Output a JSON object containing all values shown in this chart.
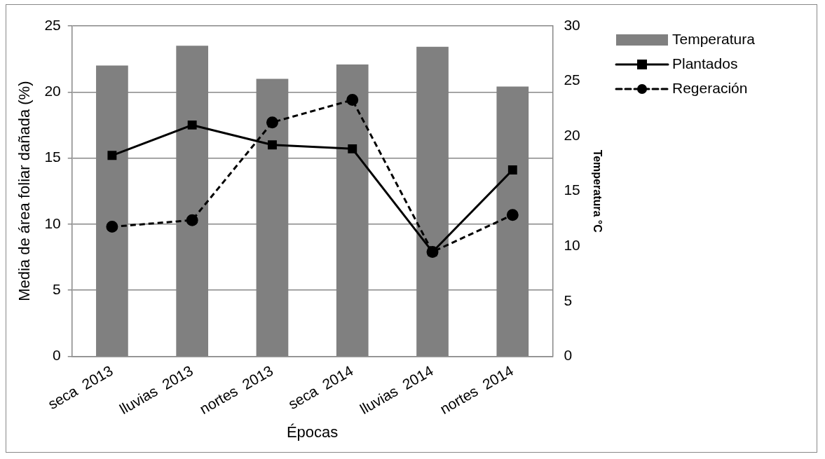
{
  "chart_data": {
    "type": "bar",
    "xlabel": "Épocas",
    "ylabel": "Media de área foliar dañada (%)",
    "y2label": "Temperatura °C",
    "categories": [
      "seca  2013",
      "lluvias  2013",
      "nortes  2013",
      "seca  2014",
      "lluvias  2014",
      "nortes  2014"
    ],
    "series": [
      {
        "name": "Temperatura",
        "axis": "y2",
        "color": "#808080",
        "values": [
          26.4,
          28.2,
          25.2,
          26.5,
          28.1,
          24.5
        ]
      },
      {
        "name": "Plantados",
        "type": "line",
        "color": "#000000",
        "marker": "square",
        "line_style": "solid",
        "values": [
          15.2,
          17.5,
          16.0,
          15.7,
          7.9,
          14.1
        ]
      },
      {
        "name": "Regeración",
        "type": "line",
        "color": "#000000",
        "marker": "circle",
        "line_style": "dashed",
        "values": [
          9.8,
          10.3,
          17.7,
          19.4,
          7.9,
          10.7
        ]
      }
    ],
    "ylim": [
      0,
      25
    ],
    "yticks": [
      0,
      5,
      10,
      15,
      20,
      25
    ],
    "y2lim": [
      0,
      30
    ],
    "y2ticks": [
      0,
      5,
      10,
      15,
      20,
      25,
      30
    ],
    "grid": "y",
    "legend": "top right"
  }
}
